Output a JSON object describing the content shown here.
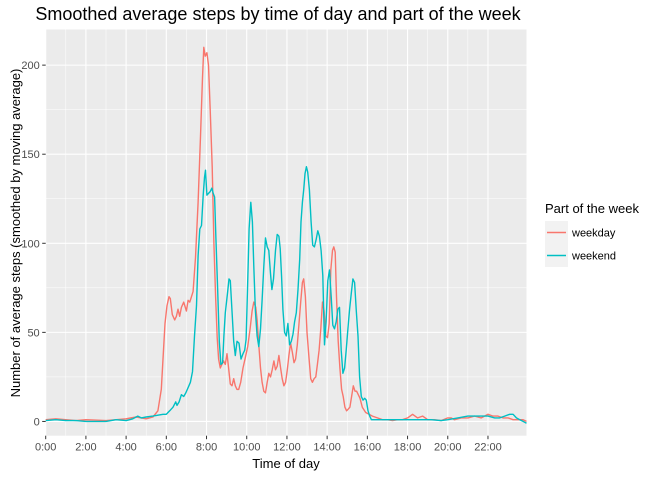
{
  "chart_data": {
    "type": "line",
    "title": "Smoothed average steps by time of day and part of the week",
    "xlabel": "Time of day",
    "ylabel": "Number of average steps (smoothed by moving average)",
    "xlim": [
      0,
      1435
    ],
    "ylim": [
      -8,
      220
    ],
    "x_ticks": [
      0,
      120,
      240,
      360,
      480,
      600,
      720,
      840,
      960,
      1080,
      1200,
      1320
    ],
    "x_tick_labels": [
      "0:00",
      "2:00",
      "4:00",
      "6:00",
      "8:00",
      "10:00",
      "12:00",
      "14:00",
      "16:00",
      "18:00",
      "20:00",
      "22:00"
    ],
    "y_ticks": [
      0,
      50,
      100,
      150,
      200
    ],
    "y_tick_labels": [
      "0",
      "50",
      "100",
      "150",
      "200"
    ],
    "grid": true,
    "legend": {
      "title": "Part of the week",
      "placement": "right"
    },
    "series": [
      {
        "name": "weekday",
        "color": "#F8766D",
        "points": [
          [
            0,
            1
          ],
          [
            30,
            1.5
          ],
          [
            60,
            1
          ],
          [
            90,
            0.5
          ],
          [
            120,
            1
          ],
          [
            180,
            0.5
          ],
          [
            210,
            1
          ],
          [
            240,
            1.5
          ],
          [
            270,
            2.5
          ],
          [
            300,
            1.5
          ],
          [
            320,
            2.5
          ],
          [
            335,
            6
          ],
          [
            345,
            18
          ],
          [
            350,
            35
          ],
          [
            356,
            55
          ],
          [
            362,
            65
          ],
          [
            368,
            70
          ],
          [
            372,
            69
          ],
          [
            378,
            60
          ],
          [
            385,
            57
          ],
          [
            390,
            59
          ],
          [
            395,
            63
          ],
          [
            400,
            59
          ],
          [
            405,
            64
          ],
          [
            412,
            67
          ],
          [
            420,
            62
          ],
          [
            425,
            68
          ],
          [
            430,
            67
          ],
          [
            440,
            73
          ],
          [
            447,
            92
          ],
          [
            455,
            123
          ],
          [
            462,
            160
          ],
          [
            468,
            193
          ],
          [
            472,
            210
          ],
          [
            476,
            205
          ],
          [
            481,
            207
          ],
          [
            486,
            200
          ],
          [
            491,
            175
          ],
          [
            497,
            143
          ],
          [
            502,
            100
          ],
          [
            507,
            70
          ],
          [
            512,
            47
          ],
          [
            516,
            35
          ],
          [
            521,
            30
          ],
          [
            526,
            32
          ],
          [
            531,
            34
          ],
          [
            536,
            32
          ],
          [
            541,
            38
          ],
          [
            546,
            30
          ],
          [
            551,
            21
          ],
          [
            556,
            20
          ],
          [
            561,
            24
          ],
          [
            566,
            20
          ],
          [
            571,
            18
          ],
          [
            576,
            18
          ],
          [
            582,
            22
          ],
          [
            589,
            30
          ],
          [
            596,
            36
          ],
          [
            603,
            42
          ],
          [
            610,
            52
          ],
          [
            616,
            62
          ],
          [
            621,
            67
          ],
          [
            627,
            64
          ],
          [
            631,
            57
          ],
          [
            636,
            43
          ],
          [
            641,
            30
          ],
          [
            646,
            22
          ],
          [
            651,
            17
          ],
          [
            656,
            16
          ],
          [
            661,
            22
          ],
          [
            666,
            27
          ],
          [
            671,
            25
          ],
          [
            676,
            29
          ],
          [
            681,
            34
          ],
          [
            686,
            29
          ],
          [
            691,
            31
          ],
          [
            696,
            37
          ],
          [
            701,
            30
          ],
          [
            706,
            24
          ],
          [
            711,
            20
          ],
          [
            716,
            22
          ],
          [
            721,
            29
          ],
          [
            726,
            37
          ],
          [
            731,
            44
          ],
          [
            736,
            39
          ],
          [
            741,
            33
          ],
          [
            746,
            35
          ],
          [
            751,
            43
          ],
          [
            756,
            55
          ],
          [
            761,
            67
          ],
          [
            766,
            78
          ],
          [
            770,
            80
          ],
          [
            775,
            70
          ],
          [
            780,
            50
          ],
          [
            786,
            35
          ],
          [
            791,
            24
          ],
          [
            796,
            22
          ],
          [
            801,
            24
          ],
          [
            806,
            25
          ],
          [
            811,
            32
          ],
          [
            816,
            40
          ],
          [
            821,
            52
          ],
          [
            826,
            67
          ],
          [
            831,
            62
          ],
          [
            836,
            48
          ],
          [
            841,
            47
          ],
          [
            846,
            55
          ],
          [
            851,
            85
          ],
          [
            856,
            96
          ],
          [
            860,
            98
          ],
          [
            864,
            95
          ],
          [
            868,
            70
          ],
          [
            873,
            45
          ],
          [
            878,
            30
          ],
          [
            883,
            18
          ],
          [
            888,
            14
          ],
          [
            893,
            8
          ],
          [
            898,
            6
          ],
          [
            903,
            7
          ],
          [
            908,
            8
          ],
          [
            913,
            14
          ],
          [
            918,
            20
          ],
          [
            923,
            17
          ],
          [
            928,
            17
          ],
          [
            933,
            15
          ],
          [
            938,
            13
          ],
          [
            945,
            8
          ],
          [
            955,
            5
          ],
          [
            965,
            4
          ],
          [
            975,
            3
          ],
          [
            990,
            2
          ],
          [
            1005,
            1
          ],
          [
            1020,
            1
          ],
          [
            1035,
            0.5
          ],
          [
            1050,
            1
          ],
          [
            1065,
            1
          ],
          [
            1080,
            2
          ],
          [
            1095,
            4
          ],
          [
            1110,
            2
          ],
          [
            1125,
            3
          ],
          [
            1140,
            1
          ],
          [
            1160,
            1
          ],
          [
            1180,
            0.5
          ],
          [
            1200,
            2
          ],
          [
            1210,
            2
          ],
          [
            1220,
            1
          ],
          [
            1240,
            2
          ],
          [
            1260,
            2
          ],
          [
            1280,
            3
          ],
          [
            1300,
            2
          ],
          [
            1320,
            4
          ],
          [
            1335,
            3
          ],
          [
            1350,
            3
          ],
          [
            1365,
            2
          ],
          [
            1380,
            2
          ],
          [
            1395,
            1
          ],
          [
            1410,
            1
          ],
          [
            1425,
            1
          ],
          [
            1435,
            0
          ]
        ]
      },
      {
        "name": "weekend",
        "color": "#00BFC4",
        "points": [
          [
            0,
            0.5
          ],
          [
            30,
            1
          ],
          [
            60,
            0.5
          ],
          [
            90,
            0.5
          ],
          [
            120,
            0
          ],
          [
            180,
            0
          ],
          [
            210,
            1
          ],
          [
            240,
            0.5
          ],
          [
            260,
            1.5
          ],
          [
            275,
            3
          ],
          [
            285,
            2
          ],
          [
            300,
            2.5
          ],
          [
            320,
            3
          ],
          [
            335,
            3.5
          ],
          [
            350,
            4
          ],
          [
            360,
            4
          ],
          [
            370,
            6
          ],
          [
            380,
            8
          ],
          [
            388,
            11
          ],
          [
            392,
            9
          ],
          [
            398,
            11
          ],
          [
            405,
            15
          ],
          [
            412,
            14
          ],
          [
            418,
            16
          ],
          [
            425,
            19
          ],
          [
            432,
            22
          ],
          [
            438,
            28
          ],
          [
            444,
            48
          ],
          [
            450,
            65
          ],
          [
            455,
            93
          ],
          [
            460,
            108
          ],
          [
            465,
            110
          ],
          [
            470,
            127
          ],
          [
            474,
            137
          ],
          [
            477,
            141
          ],
          [
            481,
            127
          ],
          [
            486,
            128
          ],
          [
            491,
            129
          ],
          [
            496,
            131
          ],
          [
            500,
            128
          ],
          [
            504,
            126
          ],
          [
            508,
            103
          ],
          [
            513,
            75
          ],
          [
            518,
            45
          ],
          [
            523,
            32
          ],
          [
            528,
            33
          ],
          [
            532,
            48
          ],
          [
            536,
            61
          ],
          [
            542,
            71
          ],
          [
            547,
            80
          ],
          [
            551,
            79
          ],
          [
            556,
            62
          ],
          [
            561,
            45
          ],
          [
            566,
            37
          ],
          [
            571,
            45
          ],
          [
            577,
            44
          ],
          [
            583,
            35
          ],
          [
            589,
            38
          ],
          [
            594,
            40
          ],
          [
            598,
            46
          ],
          [
            602,
            72
          ],
          [
            607,
            108
          ],
          [
            612,
            123
          ],
          [
            617,
            112
          ],
          [
            621,
            87
          ],
          [
            626,
            62
          ],
          [
            631,
            48
          ],
          [
            636,
            42
          ],
          [
            641,
            52
          ],
          [
            646,
            68
          ],
          [
            651,
            87
          ],
          [
            656,
            103
          ],
          [
            661,
            98
          ],
          [
            666,
            96
          ],
          [
            671,
            83
          ],
          [
            675,
            74
          ],
          [
            680,
            80
          ],
          [
            686,
            96
          ],
          [
            691,
            105
          ],
          [
            696,
            104
          ],
          [
            700,
            97
          ],
          [
            704,
            81
          ],
          [
            708,
            63
          ],
          [
            713,
            50
          ],
          [
            718,
            48
          ],
          [
            723,
            55
          ],
          [
            728,
            43
          ],
          [
            733,
            45
          ],
          [
            738,
            49
          ],
          [
            743,
            56
          ],
          [
            748,
            61
          ],
          [
            753,
            74
          ],
          [
            758,
            91
          ],
          [
            762,
            112
          ],
          [
            766,
            123
          ],
          [
            770,
            130
          ],
          [
            774,
            139
          ],
          [
            778,
            143
          ],
          [
            782,
            140
          ],
          [
            787,
            130
          ],
          [
            792,
            112
          ],
          [
            797,
            99
          ],
          [
            802,
            98
          ],
          [
            807,
            102
          ],
          [
            812,
            107
          ],
          [
            817,
            104
          ],
          [
            822,
            96
          ],
          [
            827,
            82
          ],
          [
            832,
            43
          ],
          [
            837,
            56
          ],
          [
            842,
            79
          ],
          [
            847,
            85
          ],
          [
            852,
            70
          ],
          [
            857,
            54
          ],
          [
            862,
            52
          ],
          [
            867,
            56
          ],
          [
            872,
            63
          ],
          [
            877,
            64
          ],
          [
            882,
            40
          ],
          [
            887,
            27
          ],
          [
            892,
            30
          ],
          [
            897,
            40
          ],
          [
            902,
            52
          ],
          [
            907,
            63
          ],
          [
            912,
            72
          ],
          [
            917,
            80
          ],
          [
            922,
            78
          ],
          [
            927,
            62
          ],
          [
            932,
            48
          ],
          [
            937,
            25
          ],
          [
            942,
            14
          ],
          [
            947,
            12
          ],
          [
            952,
            13
          ],
          [
            957,
            12
          ],
          [
            962,
            6
          ],
          [
            967,
            3
          ],
          [
            972,
            1
          ],
          [
            1000,
            1
          ],
          [
            1030,
            1
          ],
          [
            1060,
            1
          ],
          [
            1090,
            1
          ],
          [
            1120,
            1
          ],
          [
            1150,
            1
          ],
          [
            1180,
            0.5
          ],
          [
            1200,
            1
          ],
          [
            1230,
            2
          ],
          [
            1260,
            3
          ],
          [
            1290,
            3
          ],
          [
            1320,
            3
          ],
          [
            1340,
            2
          ],
          [
            1355,
            2
          ],
          [
            1370,
            3
          ],
          [
            1385,
            4
          ],
          [
            1395,
            4
          ],
          [
            1405,
            2
          ],
          [
            1415,
            1
          ],
          [
            1425,
            0
          ],
          [
            1435,
            -1
          ]
        ]
      }
    ]
  }
}
